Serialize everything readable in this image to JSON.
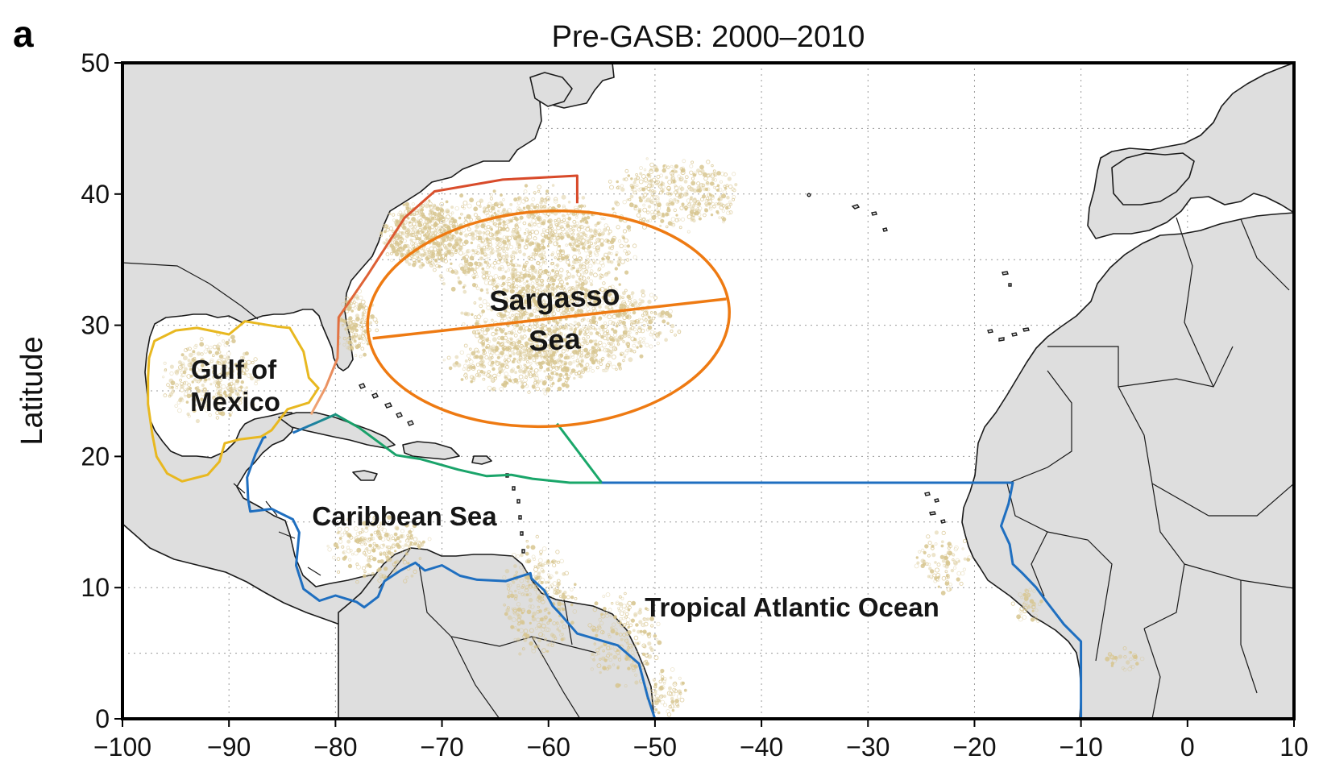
{
  "figure": {
    "panel_letter": "a",
    "title": "Pre-GASB: 2000–2010",
    "ylabel": "Latitude",
    "xlabel": "",
    "xlim": [
      -100,
      10
    ],
    "ylim": [
      0,
      50
    ],
    "x_ticks": [
      -100,
      -90,
      -80,
      -70,
      -60,
      -50,
      -40,
      -30,
      -20,
      -10,
      0,
      10
    ],
    "y_ticks": [
      0,
      10,
      20,
      30,
      40,
      50
    ],
    "x_tick_labels": [
      "−100",
      "−90",
      "−80",
      "−70",
      "−60",
      "−50",
      "−40",
      "−30",
      "−20",
      "−10",
      "0",
      "10"
    ],
    "y_tick_labels": [
      "0",
      "10",
      "20",
      "30",
      "40",
      "50"
    ],
    "grid": true
  },
  "regions": {
    "sargasso_sea": {
      "line1": "Sargasso",
      "line2": "Sea"
    },
    "gulf_of_mexico": {
      "line1": "Gulf of",
      "line2": "Mexico"
    },
    "caribbean_sea": {
      "label": "Caribbean Sea"
    },
    "tropical_atlantic": {
      "label": "Tropical Atlantic Ocean"
    }
  },
  "colors": {
    "land": "#dedede",
    "ocean": "#ffffff",
    "sargassum": "#d8c690",
    "gulf_boundary": "#e8b820",
    "gulf_stream_boundary": "#dc5a38",
    "sargasso_boundary": "#ee7a12",
    "caribbean_boundary": "#1aa86a",
    "tropical_boundary": "#1f6fc0"
  },
  "map_data": {
    "type": "map",
    "sargassum_clusters": [
      {
        "lon": -72,
        "lat": 37,
        "rlon": 4,
        "rlat": 3,
        "n": 450
      },
      {
        "lon": -62,
        "lat": 36,
        "rlon": 11,
        "rlat": 5,
        "n": 1100
      },
      {
        "lon": -58,
        "lat": 30,
        "rlon": 11,
        "rlat": 4,
        "n": 950
      },
      {
        "lon": -48,
        "lat": 40,
        "rlon": 7,
        "rlat": 3,
        "n": 380
      },
      {
        "lon": -62,
        "lat": 27,
        "rlon": 8,
        "rlat": 2.5,
        "n": 350
      },
      {
        "lon": -78,
        "lat": 30,
        "rlon": 2,
        "rlat": 3,
        "n": 140
      },
      {
        "lon": -91.5,
        "lat": 26,
        "rlon": 5,
        "rlat": 3.5,
        "n": 300
      },
      {
        "lon": -76,
        "lat": 13,
        "rlon": 5,
        "rlat": 3,
        "n": 220
      },
      {
        "lon": -61,
        "lat": 9,
        "rlon": 4,
        "rlat": 5,
        "n": 260
      },
      {
        "lon": -53,
        "lat": 6,
        "rlon": 4,
        "rlat": 4,
        "n": 200
      },
      {
        "lon": -49,
        "lat": 2,
        "rlon": 2,
        "rlat": 2,
        "n": 70
      },
      {
        "lon": -23,
        "lat": 12,
        "rlon": 3,
        "rlat": 2.5,
        "n": 90
      },
      {
        "lon": -15,
        "lat": 8.5,
        "rlon": 1.5,
        "rlat": 1.5,
        "n": 40
      },
      {
        "lon": -6,
        "lat": 4.5,
        "rlon": 2,
        "rlat": 1,
        "n": 30
      }
    ],
    "sargasso_ellipse": {
      "center_lon": -60,
      "center_lat": 30.5,
      "radius_lon": 17,
      "radius_lat": 8.2,
      "rotation_deg": -3,
      "divider": [
        [
          -76.5,
          29
        ],
        [
          -43.3,
          32
        ]
      ]
    },
    "boundaries": {
      "gulf_of_mexico": [
        [
          -97.5,
          27.5
        ],
        [
          -97,
          28.8
        ],
        [
          -95,
          29.6
        ],
        [
          -93,
          29.8
        ],
        [
          -90,
          29.3
        ],
        [
          -88.5,
          30.3
        ],
        [
          -85.5,
          29.9
        ],
        [
          -84.3,
          29.8
        ],
        [
          -83,
          28
        ],
        [
          -82.5,
          26
        ],
        [
          -81.6,
          25.2
        ],
        [
          -82.5,
          24.1
        ],
        [
          -84.5,
          23.6
        ],
        [
          -86,
          22
        ],
        [
          -87,
          21.5
        ],
        [
          -89,
          21.3
        ],
        [
          -90.4,
          21
        ],
        [
          -90.9,
          19.6
        ],
        [
          -92,
          18.6
        ],
        [
          -94.4,
          18.1
        ],
        [
          -95.8,
          18.7
        ],
        [
          -96.8,
          20
        ],
        [
          -97.2,
          21.7
        ],
        [
          -97.6,
          24
        ],
        [
          -97.6,
          26
        ]
      ],
      "gulf_stream": [
        [
          -82.3,
          23.2
        ],
        [
          -80.9,
          25.3
        ],
        [
          -79.8,
          27.5
        ],
        [
          -79.7,
          30.6
        ],
        [
          -77,
          33.8
        ],
        [
          -73.5,
          38.2
        ],
        [
          -70.7,
          40.2
        ],
        [
          -64.3,
          41.1
        ],
        [
          -57.3,
          41.4
        ],
        [
          -57.3,
          39.3
        ]
      ],
      "caribbean_north": [
        [
          -84,
          21.8
        ],
        [
          -82,
          22.5
        ],
        [
          -80,
          23.2
        ],
        [
          -77.8,
          22.2
        ],
        [
          -74.3,
          20.1
        ],
        [
          -72,
          19.8
        ],
        [
          -68.5,
          19
        ],
        [
          -65.8,
          18.5
        ],
        [
          -63.5,
          18.6
        ],
        [
          -61.5,
          18.3
        ],
        [
          -58,
          18
        ],
        [
          -55,
          18
        ],
        [
          -59.2,
          22.5
        ]
      ],
      "tropical_atlantic": [
        [
          -55,
          18
        ],
        [
          -16.4,
          18
        ],
        [
          -16.8,
          16.4
        ],
        [
          -17.5,
          14.7
        ],
        [
          -16.7,
          13.3
        ],
        [
          -16.4,
          11.8
        ],
        [
          -15.5,
          11.1
        ],
        [
          -14.2,
          10
        ],
        [
          -13.3,
          9
        ],
        [
          -11.6,
          7.2
        ],
        [
          -10,
          5.9
        ],
        [
          -10,
          0
        ]
      ],
      "south_america_coast": [
        [
          -50,
          0
        ],
        [
          -50.7,
          1.7
        ],
        [
          -51.5,
          4.2
        ],
        [
          -53.5,
          5.6
        ],
        [
          -55.2,
          6
        ],
        [
          -57.3,
          6.5
        ],
        [
          -58.9,
          8
        ],
        [
          -59.6,
          8.6
        ],
        [
          -60.4,
          9.8
        ],
        [
          -61.6,
          10.7
        ],
        [
          -61.7,
          11.1
        ],
        [
          -64,
          10.5
        ],
        [
          -66.7,
          10.6
        ],
        [
          -68.3,
          10.9
        ],
        [
          -70,
          11.7
        ],
        [
          -71.6,
          11.3
        ],
        [
          -72.5,
          11.9
        ],
        [
          -73.9,
          11.3
        ],
        [
          -75.4,
          10.5
        ],
        [
          -76,
          9.3
        ],
        [
          -77.3,
          8.5
        ],
        [
          -78,
          8.9
        ],
        [
          -80,
          9.4
        ],
        [
          -81.5,
          9
        ],
        [
          -83,
          9.9
        ],
        [
          -83.7,
          11.7
        ],
        [
          -83.4,
          14.2
        ],
        [
          -84,
          15.2
        ],
        [
          -86,
          16
        ],
        [
          -88,
          15.8
        ],
        [
          -88.2,
          16.7
        ],
        [
          -88.3,
          18.4
        ],
        [
          -87.5,
          20.2
        ],
        [
          -86.8,
          21.4
        ],
        [
          -86.5,
          21.5
        ]
      ]
    }
  }
}
